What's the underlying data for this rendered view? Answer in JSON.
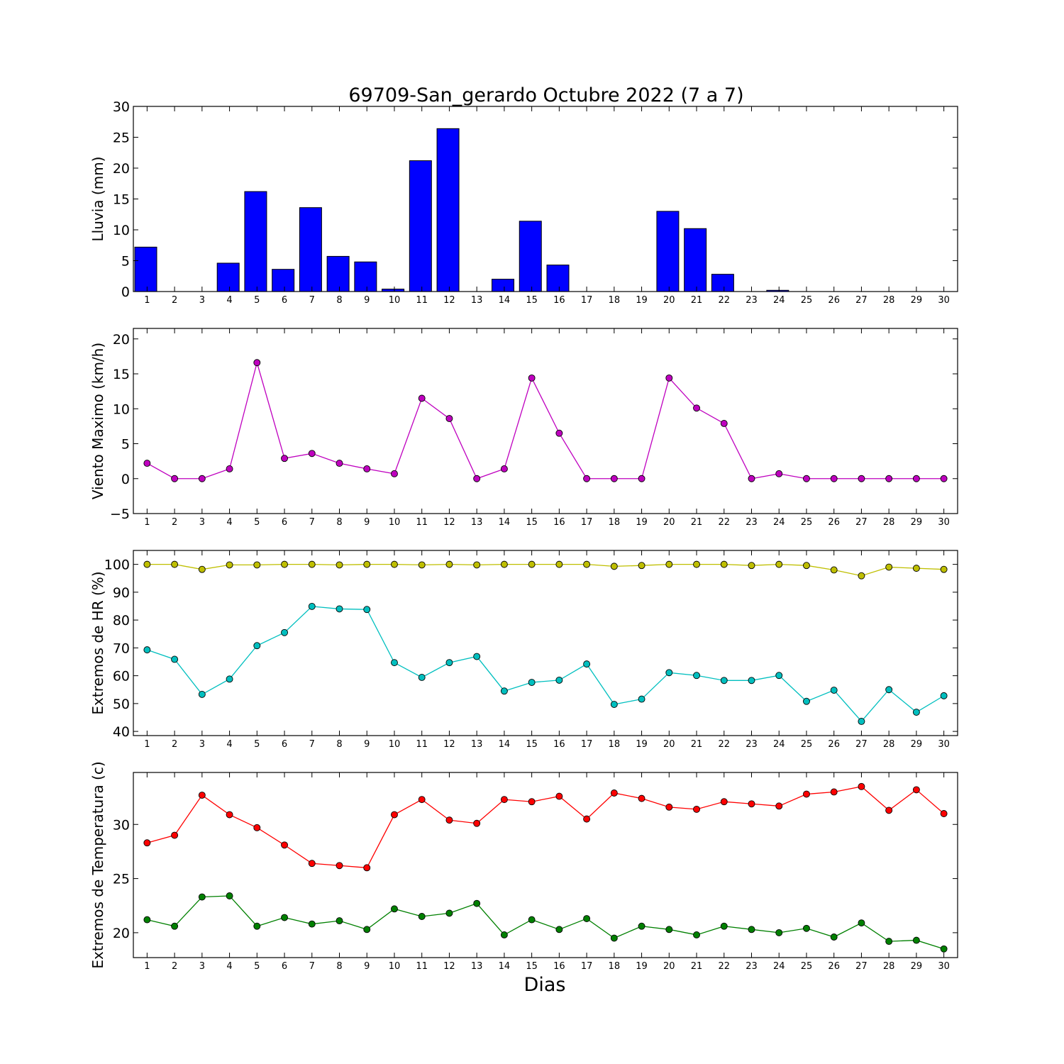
{
  "figure": {
    "title": "69709-San_gerardo Octubre 2022  (7 a 7)",
    "xlabel": "Dias"
  },
  "chart_data": [
    {
      "type": "bar",
      "ylabel": "Lluvia (mm)",
      "x": [
        1,
        2,
        3,
        4,
        5,
        6,
        7,
        8,
        9,
        10,
        11,
        12,
        13,
        14,
        15,
        16,
        17,
        18,
        19,
        20,
        21,
        22,
        23,
        24,
        25,
        26,
        27,
        28,
        29,
        30
      ],
      "ylim": [
        0,
        30
      ],
      "yticks": [
        0,
        5,
        10,
        15,
        20,
        25,
        30
      ],
      "grid": false,
      "series": [
        {
          "color": "#0000ff",
          "values": [
            7.2,
            0,
            0,
            4.6,
            16.2,
            3.6,
            13.6,
            5.7,
            4.8,
            0.4,
            21.2,
            26.4,
            0,
            2.0,
            11.4,
            4.3,
            0,
            0,
            0,
            13.0,
            10.2,
            2.8,
            0,
            0.2,
            0,
            0,
            0,
            0,
            0,
            0
          ]
        }
      ]
    },
    {
      "type": "line",
      "ylabel": "Viento Maximo (km/h)",
      "x": [
        1,
        2,
        3,
        4,
        5,
        6,
        7,
        8,
        9,
        10,
        11,
        12,
        13,
        14,
        15,
        16,
        17,
        18,
        19,
        20,
        21,
        22,
        23,
        24,
        25,
        26,
        27,
        28,
        29,
        30
      ],
      "ylim": [
        -5,
        21.5
      ],
      "yticks": [
        -5,
        0,
        5,
        10,
        15,
        20
      ],
      "grid": false,
      "series": [
        {
          "color": "#bf00bf",
          "values": [
            2.2,
            0,
            0,
            1.4,
            16.6,
            2.9,
            3.6,
            2.2,
            1.4,
            0.7,
            11.5,
            8.6,
            0,
            1.4,
            14.4,
            6.5,
            0,
            0,
            0,
            14.4,
            10.1,
            7.9,
            0,
            0.7,
            0,
            0,
            0,
            0,
            0,
            0
          ]
        }
      ]
    },
    {
      "type": "line",
      "ylabel": "Extremos de HR (%)",
      "x": [
        1,
        2,
        3,
        4,
        5,
        6,
        7,
        8,
        9,
        10,
        11,
        12,
        13,
        14,
        15,
        16,
        17,
        18,
        19,
        20,
        21,
        22,
        23,
        24,
        25,
        26,
        27,
        28,
        29,
        30
      ],
      "ylim": [
        38.5,
        105
      ],
      "yticks": [
        40,
        50,
        60,
        70,
        80,
        90,
        100
      ],
      "grid": false,
      "series": [
        {
          "color": "#bfbf00",
          "values": [
            100,
            100,
            98.2,
            99.8,
            99.8,
            100,
            100,
            99.8,
            100,
            100,
            99.8,
            100,
            99.8,
            100,
            100,
            100,
            100,
            99.3,
            99.6,
            100,
            100,
            100,
            99.6,
            100,
            99.6,
            98,
            95.9,
            99,
            98.6,
            98.2
          ]
        },
        {
          "color": "#00bfbf",
          "values": [
            69.3,
            65.9,
            53.3,
            58.8,
            70.8,
            75.5,
            84.9,
            84,
            83.8,
            64.7,
            59.4,
            64.7,
            66.9,
            54.5,
            57.6,
            58.4,
            64.2,
            49.7,
            51.6,
            61.1,
            60.1,
            58.3,
            58.3,
            60.1,
            50.8,
            54.8,
            43.6,
            55,
            46.9,
            52.8
          ]
        }
      ]
    },
    {
      "type": "line",
      "ylabel": "Extremos de Temperatura (c)",
      "x": [
        1,
        2,
        3,
        4,
        5,
        6,
        7,
        8,
        9,
        10,
        11,
        12,
        13,
        14,
        15,
        16,
        17,
        18,
        19,
        20,
        21,
        22,
        23,
        24,
        25,
        26,
        27,
        28,
        29,
        30
      ],
      "ylim": [
        17.7,
        34.8
      ],
      "yticks": [
        20,
        25,
        30
      ],
      "grid": false,
      "series": [
        {
          "color": "#ff0000",
          "values": [
            28.3,
            29,
            32.7,
            30.9,
            29.7,
            28.1,
            26.4,
            26.2,
            26,
            30.9,
            32.3,
            30.4,
            30.1,
            32.3,
            32.1,
            32.6,
            30.5,
            32.9,
            32.4,
            31.6,
            31.4,
            32.1,
            31.9,
            31.7,
            32.8,
            33,
            33.5,
            31.3,
            33.2,
            31
          ]
        },
        {
          "color": "#008000",
          "values": [
            21.2,
            20.6,
            23.3,
            23.4,
            20.6,
            21.4,
            20.8,
            21.1,
            20.3,
            22.2,
            21.5,
            21.8,
            22.7,
            19.8,
            21.2,
            20.3,
            21.3,
            19.5,
            20.6,
            20.3,
            19.8,
            20.6,
            20.3,
            20,
            20.4,
            19.6,
            20.9,
            19.2,
            19.3,
            18.5
          ]
        }
      ]
    }
  ]
}
